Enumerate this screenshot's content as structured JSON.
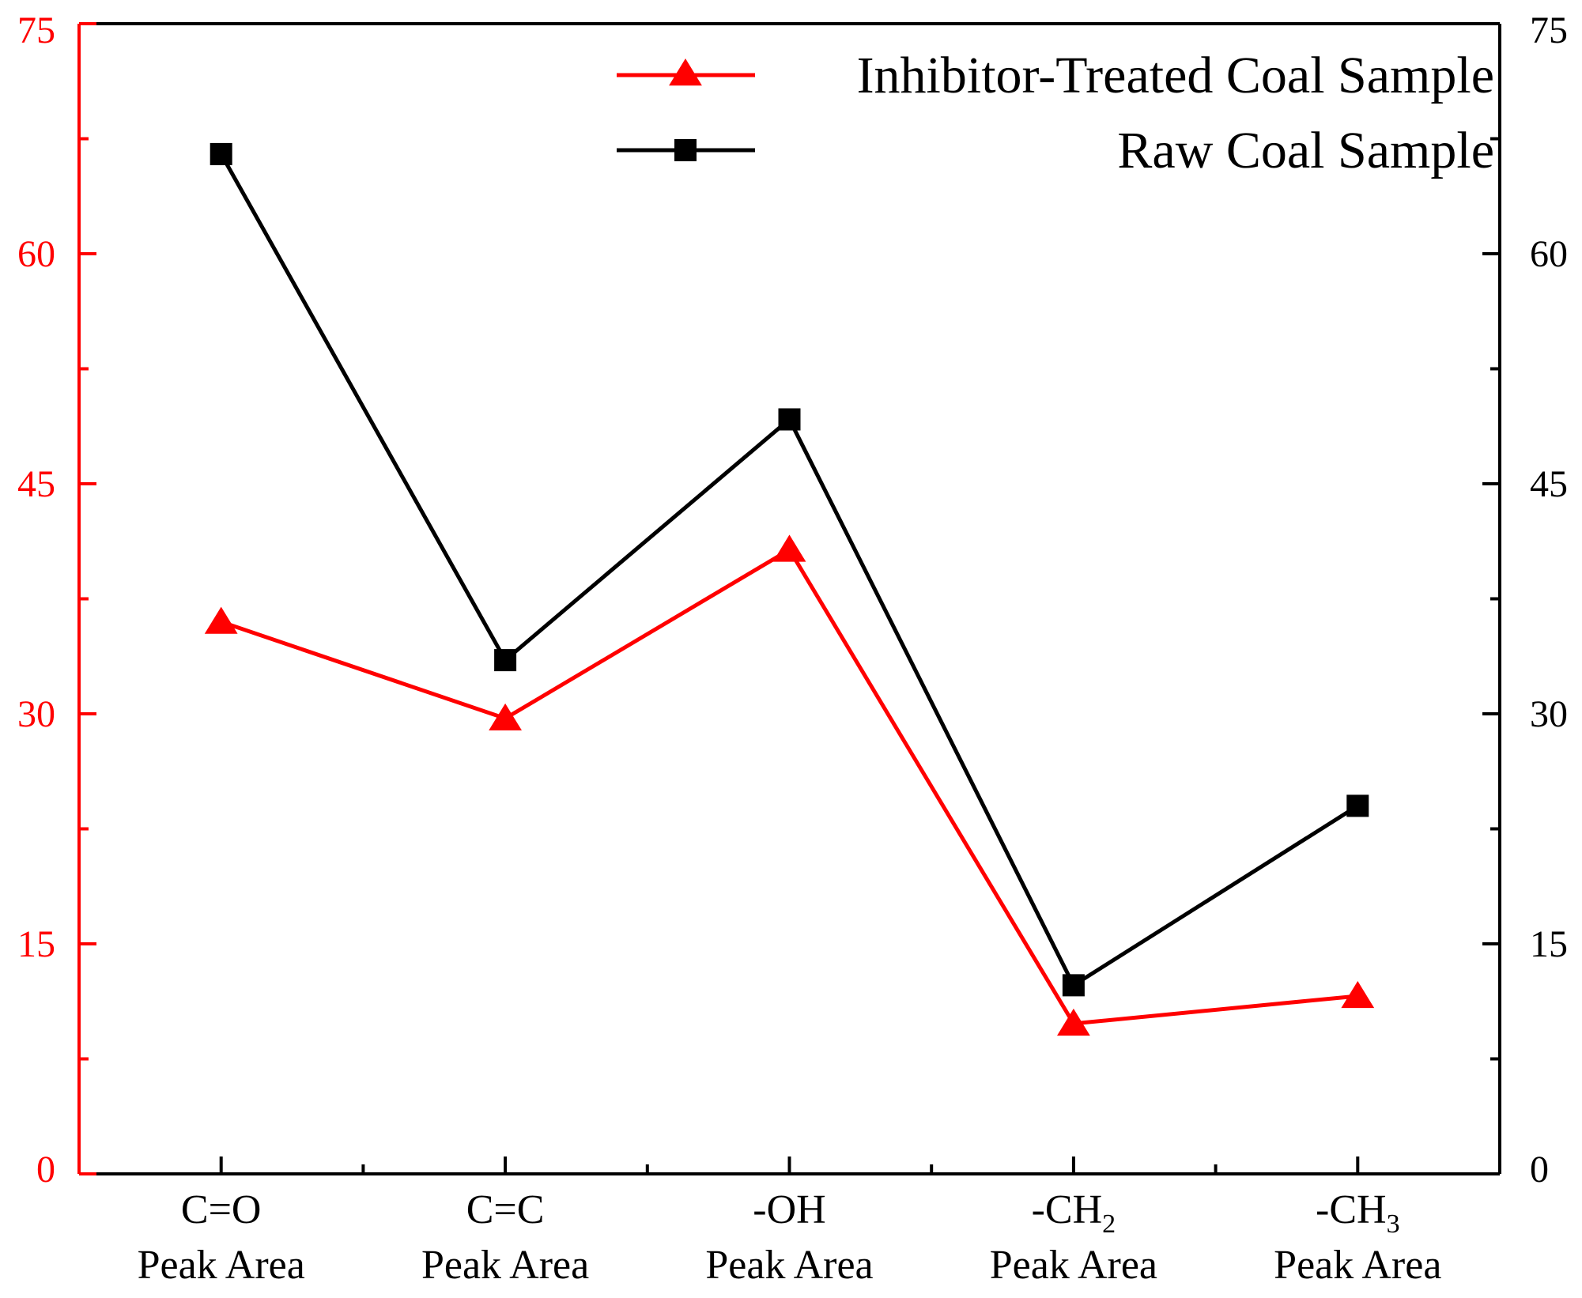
{
  "colors": {
    "series_a": "#ff0000",
    "series_b": "#000000",
    "left_axis": "#ff0000",
    "right_axis": "#000000",
    "background": "#ffffff"
  },
  "chart_data": {
    "type": "line",
    "title": "",
    "xlabel": "",
    "ylabel_left": "",
    "ylabel_right": "",
    "ylim": [
      0,
      75
    ],
    "y_ticks": [
      "0",
      "15",
      "30",
      "45",
      "60",
      "75"
    ],
    "grid": false,
    "legend_position": "top-right",
    "categories": [
      {
        "line1": "C=O",
        "line2": "Peak Area"
      },
      {
        "line1": "C=C",
        "line2": "Peak Area"
      },
      {
        "line1": "-OH",
        "line2": "Peak Area"
      },
      {
        "line1": "-CH",
        "sub": "2",
        "line2": "Peak Area"
      },
      {
        "line1": "-CH",
        "sub": "3",
        "line2": "Peak Area"
      }
    ],
    "series": [
      {
        "name": "Inhibitor-Treated Coal Sample",
        "marker": "triangle",
        "axis": "left",
        "values": [
          36.0,
          29.7,
          40.7,
          9.8,
          11.6
        ]
      },
      {
        "name": "Raw Coal Sample",
        "marker": "square",
        "axis": "right",
        "values": [
          66.5,
          33.5,
          49.2,
          12.3,
          24.0
        ]
      }
    ]
  }
}
